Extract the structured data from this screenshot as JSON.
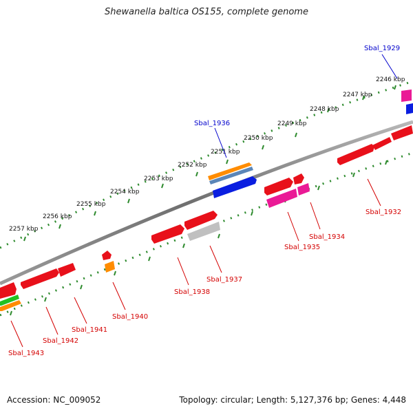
{
  "header": {
    "title": "Shewanella baltica OS155, complete genome"
  },
  "footer": {
    "accession": "Accession: NC_009052",
    "summary": "Topology: circular; Length: 5,127,376 bp; Genes: 4,448"
  },
  "colors": {
    "backbone": "#8a8a8a",
    "ticks": "#2e8b2e",
    "red_gene": "#e8101a",
    "pink_gene": "#ea1a96",
    "blue_gene": "#0a1ee0",
    "orange_gene": "#ff8c00",
    "steel_gene": "#5b86b8",
    "green_gene": "#22c022",
    "gray_gene": "#c0c0c0",
    "label_red": "#d40000",
    "label_blue": "#0000cc"
  },
  "scale": {
    "kbp_labels": [
      "2246 kbp",
      "2247 kbp",
      "2248 kbp",
      "2249 kbp",
      "2250 kbp",
      "2251 kbp",
      "2252 kbp",
      "2253 kbp",
      "2254 kbp",
      "2255 kbp",
      "2256 kbp",
      "2257 kbp"
    ]
  },
  "gene_labels": [
    {
      "name": "Sbal_1929",
      "color": "blue"
    },
    {
      "name": "Sbal_1936",
      "color": "blue"
    },
    {
      "name": "Sbal_1932",
      "color": "red"
    },
    {
      "name": "Sbal_1934",
      "color": "red"
    },
    {
      "name": "Sbal_1935",
      "color": "red"
    },
    {
      "name": "Sbal_1937",
      "color": "red"
    },
    {
      "name": "Sbal_1938",
      "color": "red"
    },
    {
      "name": "Sbal_1940",
      "color": "red"
    },
    {
      "name": "Sbal_1941",
      "color": "red"
    },
    {
      "name": "Sbal_1942",
      "color": "red"
    },
    {
      "name": "Sbal_1943",
      "color": "red"
    }
  ]
}
